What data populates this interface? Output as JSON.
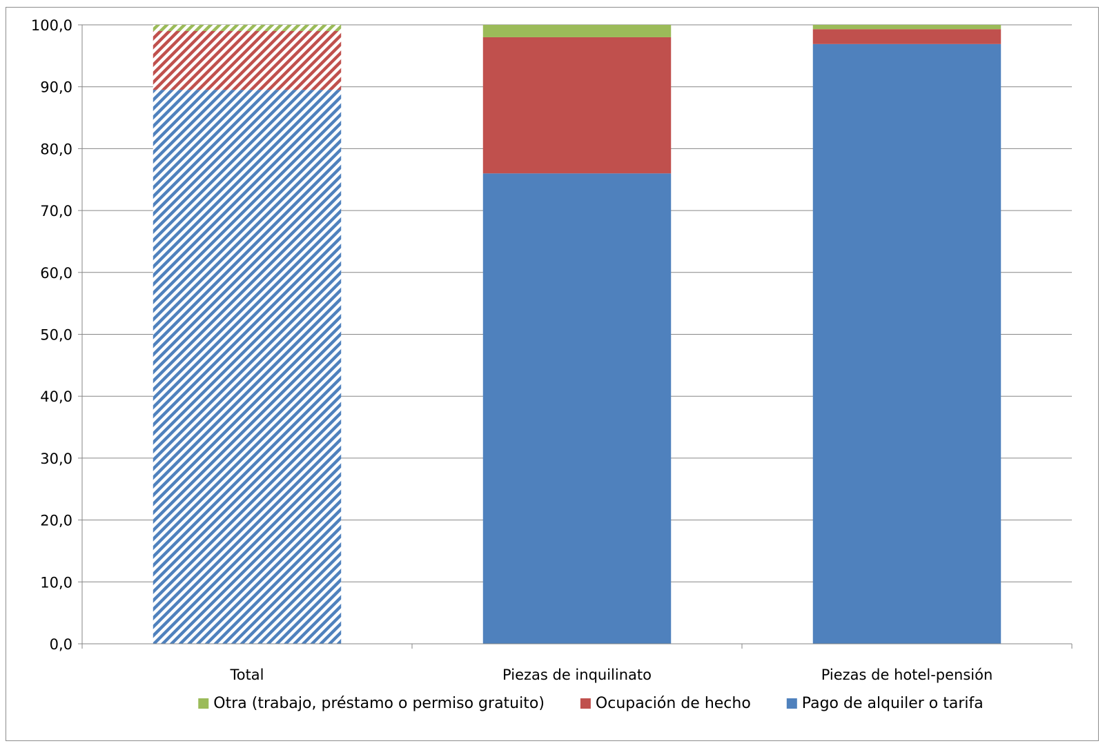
{
  "chart_data": {
    "type": "bar",
    "stacked": true,
    "percent": true,
    "categories": [
      "Total",
      "Piezas de inquilinato",
      "Piezas de hotel-pensión"
    ],
    "series": [
      {
        "name": "Pago de alquiler o tarifa",
        "color": "#4f81bd",
        "values": [
          89.5,
          76.0,
          96.9
        ]
      },
      {
        "name": "Ocupación de hecho",
        "color": "#c0504d",
        "values": [
          9.5,
          22.0,
          2.4
        ]
      },
      {
        "name": "Otra (trabajo, préstamo o permiso gratuito)",
        "color": "#9bbb59",
        "values": [
          1.0,
          2.0,
          0.7
        ]
      }
    ],
    "patterned_categories": [
      "Total"
    ],
    "yticks": [
      "0,0",
      "10,0",
      "20,0",
      "30,0",
      "40,0",
      "50,0",
      "60,0",
      "70,0",
      "80,0",
      "90,0",
      "100,0"
    ],
    "ylim": [
      0,
      100
    ],
    "grid": true,
    "legend_position": "bottom",
    "legend_order": [
      "Otra (trabajo, préstamo o permiso gratuito)",
      "Ocupación de hecho",
      "Pago de alquiler o tarifa"
    ],
    "title": "",
    "xlabel": "",
    "ylabel": ""
  }
}
